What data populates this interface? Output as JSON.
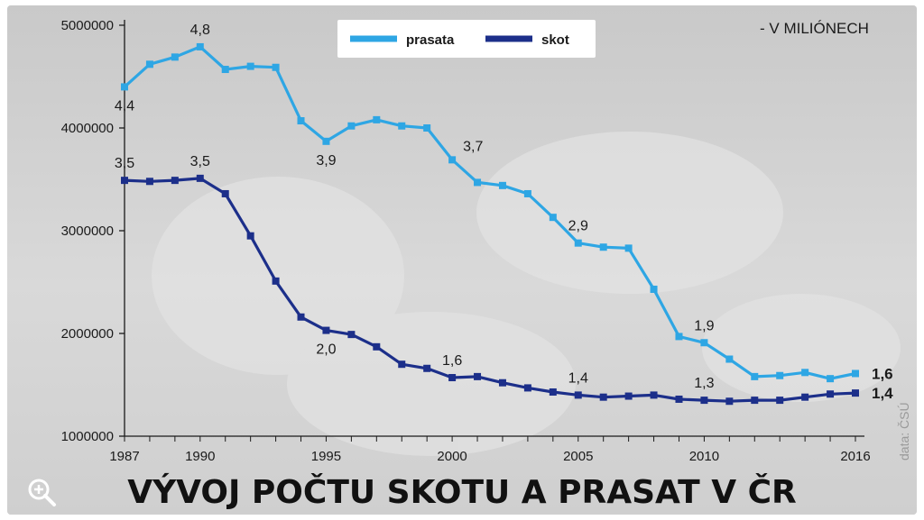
{
  "title": "VÝVOJ POČTU SKOTU A PRASAT V ČR",
  "unit_note": "- V MILIÓNECH",
  "source": "data: ČSÚ",
  "icons": {
    "zoom": "zoom-in-icon"
  },
  "colors": {
    "prasata": "#2ea6e4",
    "skot": "#1c2f8a",
    "background": "#d6d6d6"
  },
  "chart_data": {
    "type": "line",
    "x": [
      1987,
      1988,
      1989,
      1990,
      1991,
      1992,
      1993,
      1994,
      1995,
      1996,
      1997,
      1998,
      1999,
      2000,
      2001,
      2002,
      2003,
      2004,
      2005,
      2006,
      2007,
      2008,
      2009,
      2010,
      2011,
      2012,
      2013,
      2014,
      2015,
      2016
    ],
    "x_tick_labels": [
      "1987",
      "1990",
      "1995",
      "2000",
      "2005",
      "2010",
      "2016"
    ],
    "x_tick_values": [
      1987,
      1990,
      1995,
      2000,
      2005,
      2010,
      2016
    ],
    "y_tick_labels": [
      "1000000",
      "2000000",
      "3000000",
      "4000000",
      "5000000"
    ],
    "y_tick_values": [
      1000000,
      2000000,
      3000000,
      4000000,
      5000000
    ],
    "ylim": [
      1000000,
      5000000
    ],
    "xlim": [
      1987,
      2016
    ],
    "legend_position": "top-center",
    "series": [
      {
        "name": "prasata",
        "color": "#2ea6e4",
        "values": [
          4400000,
          4620000,
          4690000,
          4790000,
          4570000,
          4600000,
          4590000,
          4070000,
          3870000,
          4020000,
          4080000,
          4020000,
          4000000,
          3690000,
          3470000,
          3440000,
          3360000,
          3130000,
          2880000,
          2840000,
          2830000,
          2430000,
          1970000,
          1910000,
          1750000,
          1580000,
          1590000,
          1620000,
          1560000,
          1610000
        ],
        "labels": [
          {
            "x": 1987,
            "text": "4,4",
            "pos": "below"
          },
          {
            "x": 1990,
            "text": "4,8",
            "pos": "above"
          },
          {
            "x": 1995,
            "text": "3,9",
            "pos": "below"
          },
          {
            "x": 2000,
            "text": "3,7",
            "pos": "right"
          },
          {
            "x": 2005,
            "text": "2,9",
            "pos": "above"
          },
          {
            "x": 2010,
            "text": "1,9",
            "pos": "above"
          },
          {
            "x": 2016,
            "text": "1,6",
            "pos": "end"
          }
        ]
      },
      {
        "name": "skot",
        "color": "#1c2f8a",
        "values": [
          3490000,
          3480000,
          3490000,
          3510000,
          3360000,
          2950000,
          2510000,
          2160000,
          2030000,
          1990000,
          1870000,
          1700000,
          1660000,
          1570000,
          1580000,
          1520000,
          1470000,
          1430000,
          1400000,
          1380000,
          1390000,
          1400000,
          1360000,
          1350000,
          1340000,
          1350000,
          1350000,
          1380000,
          1410000,
          1420000
        ],
        "labels": [
          {
            "x": 1987,
            "text": "3,5",
            "pos": "above"
          },
          {
            "x": 1990,
            "text": "3,5",
            "pos": "above"
          },
          {
            "x": 1995,
            "text": "2,0",
            "pos": "below"
          },
          {
            "x": 2000,
            "text": "1,6",
            "pos": "above"
          },
          {
            "x": 2005,
            "text": "1,4",
            "pos": "above"
          },
          {
            "x": 2010,
            "text": "1,3",
            "pos": "above"
          },
          {
            "x": 2016,
            "text": "1,4",
            "pos": "end"
          }
        ]
      }
    ]
  }
}
